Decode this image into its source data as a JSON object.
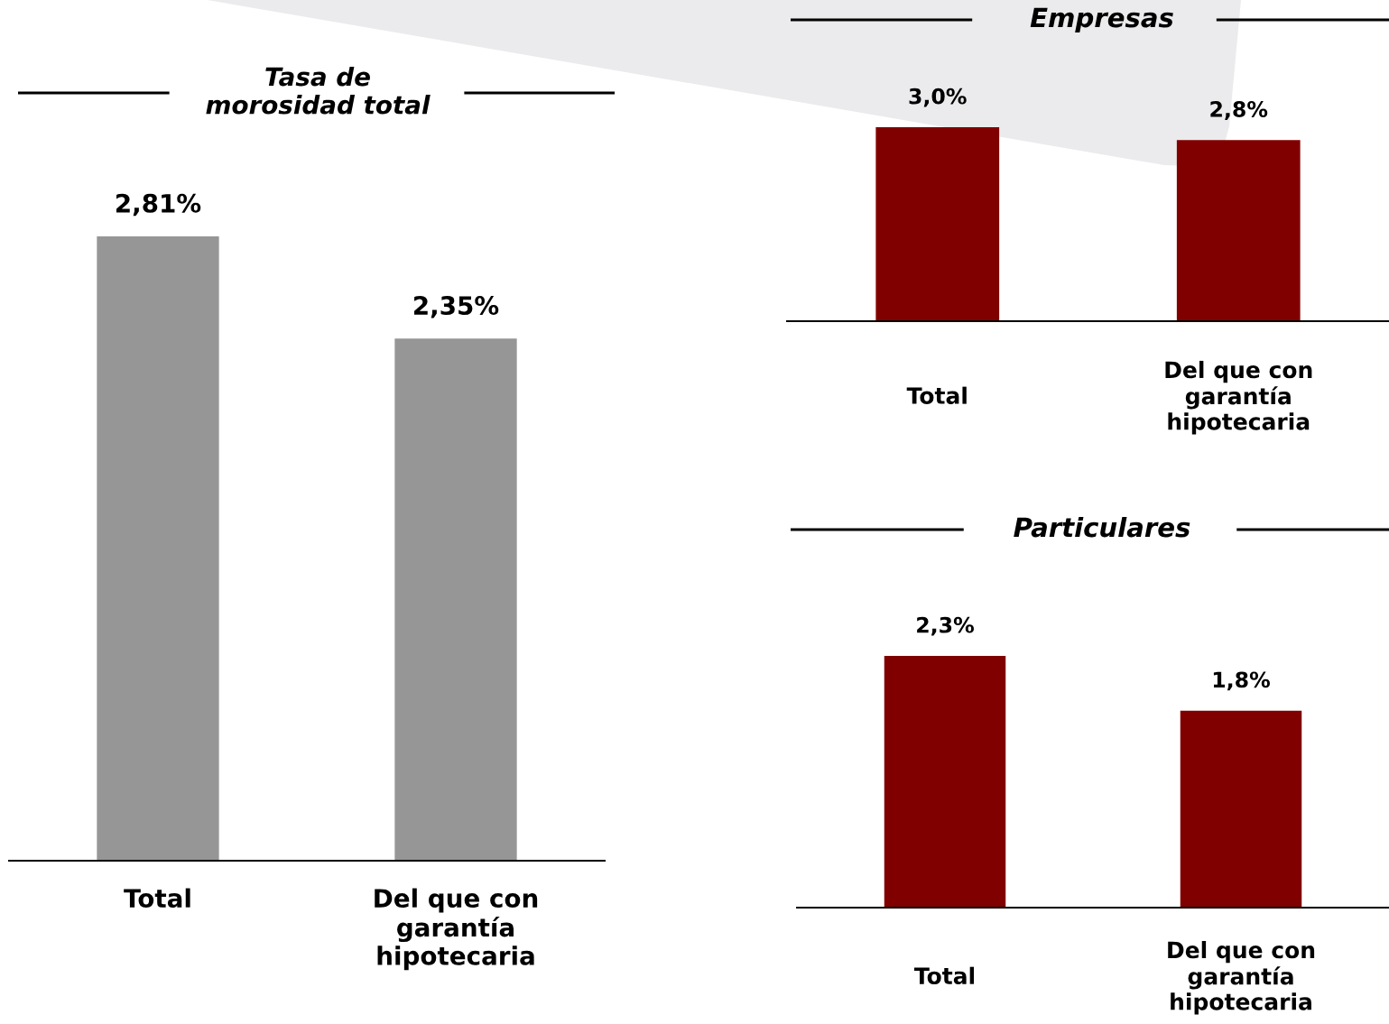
{
  "chart_data": [
    {
      "type": "bar",
      "title": "Tasa de\nmorosidad total",
      "categories": [
        "Total",
        "Del que con\ngarantía\nhipotecaria"
      ],
      "values": [
        2.81,
        2.35
      ],
      "color": "#969696",
      "value_labels": [
        "2,81%",
        "2,35%"
      ],
      "tick_labels": "x"
    },
    {
      "type": "bar",
      "title": "Empresas",
      "categories": [
        "Total",
        "Del que con\ngarantía\nhipotecaria"
      ],
      "values": [
        3.0,
        2.8
      ],
      "color": "#800000",
      "value_labels": [
        "3,0%",
        "2,8%"
      ],
      "tick_labels": "x"
    },
    {
      "type": "bar",
      "title": "Particulares",
      "categories": [
        "Total",
        "Del que con\ngarantía\nhipotecaria"
      ],
      "values": [
        2.3,
        1.8
      ],
      "color": "#800000",
      "value_labels": [
        "2,3%",
        "1,8%"
      ],
      "tick_labels": "x"
    }
  ]
}
